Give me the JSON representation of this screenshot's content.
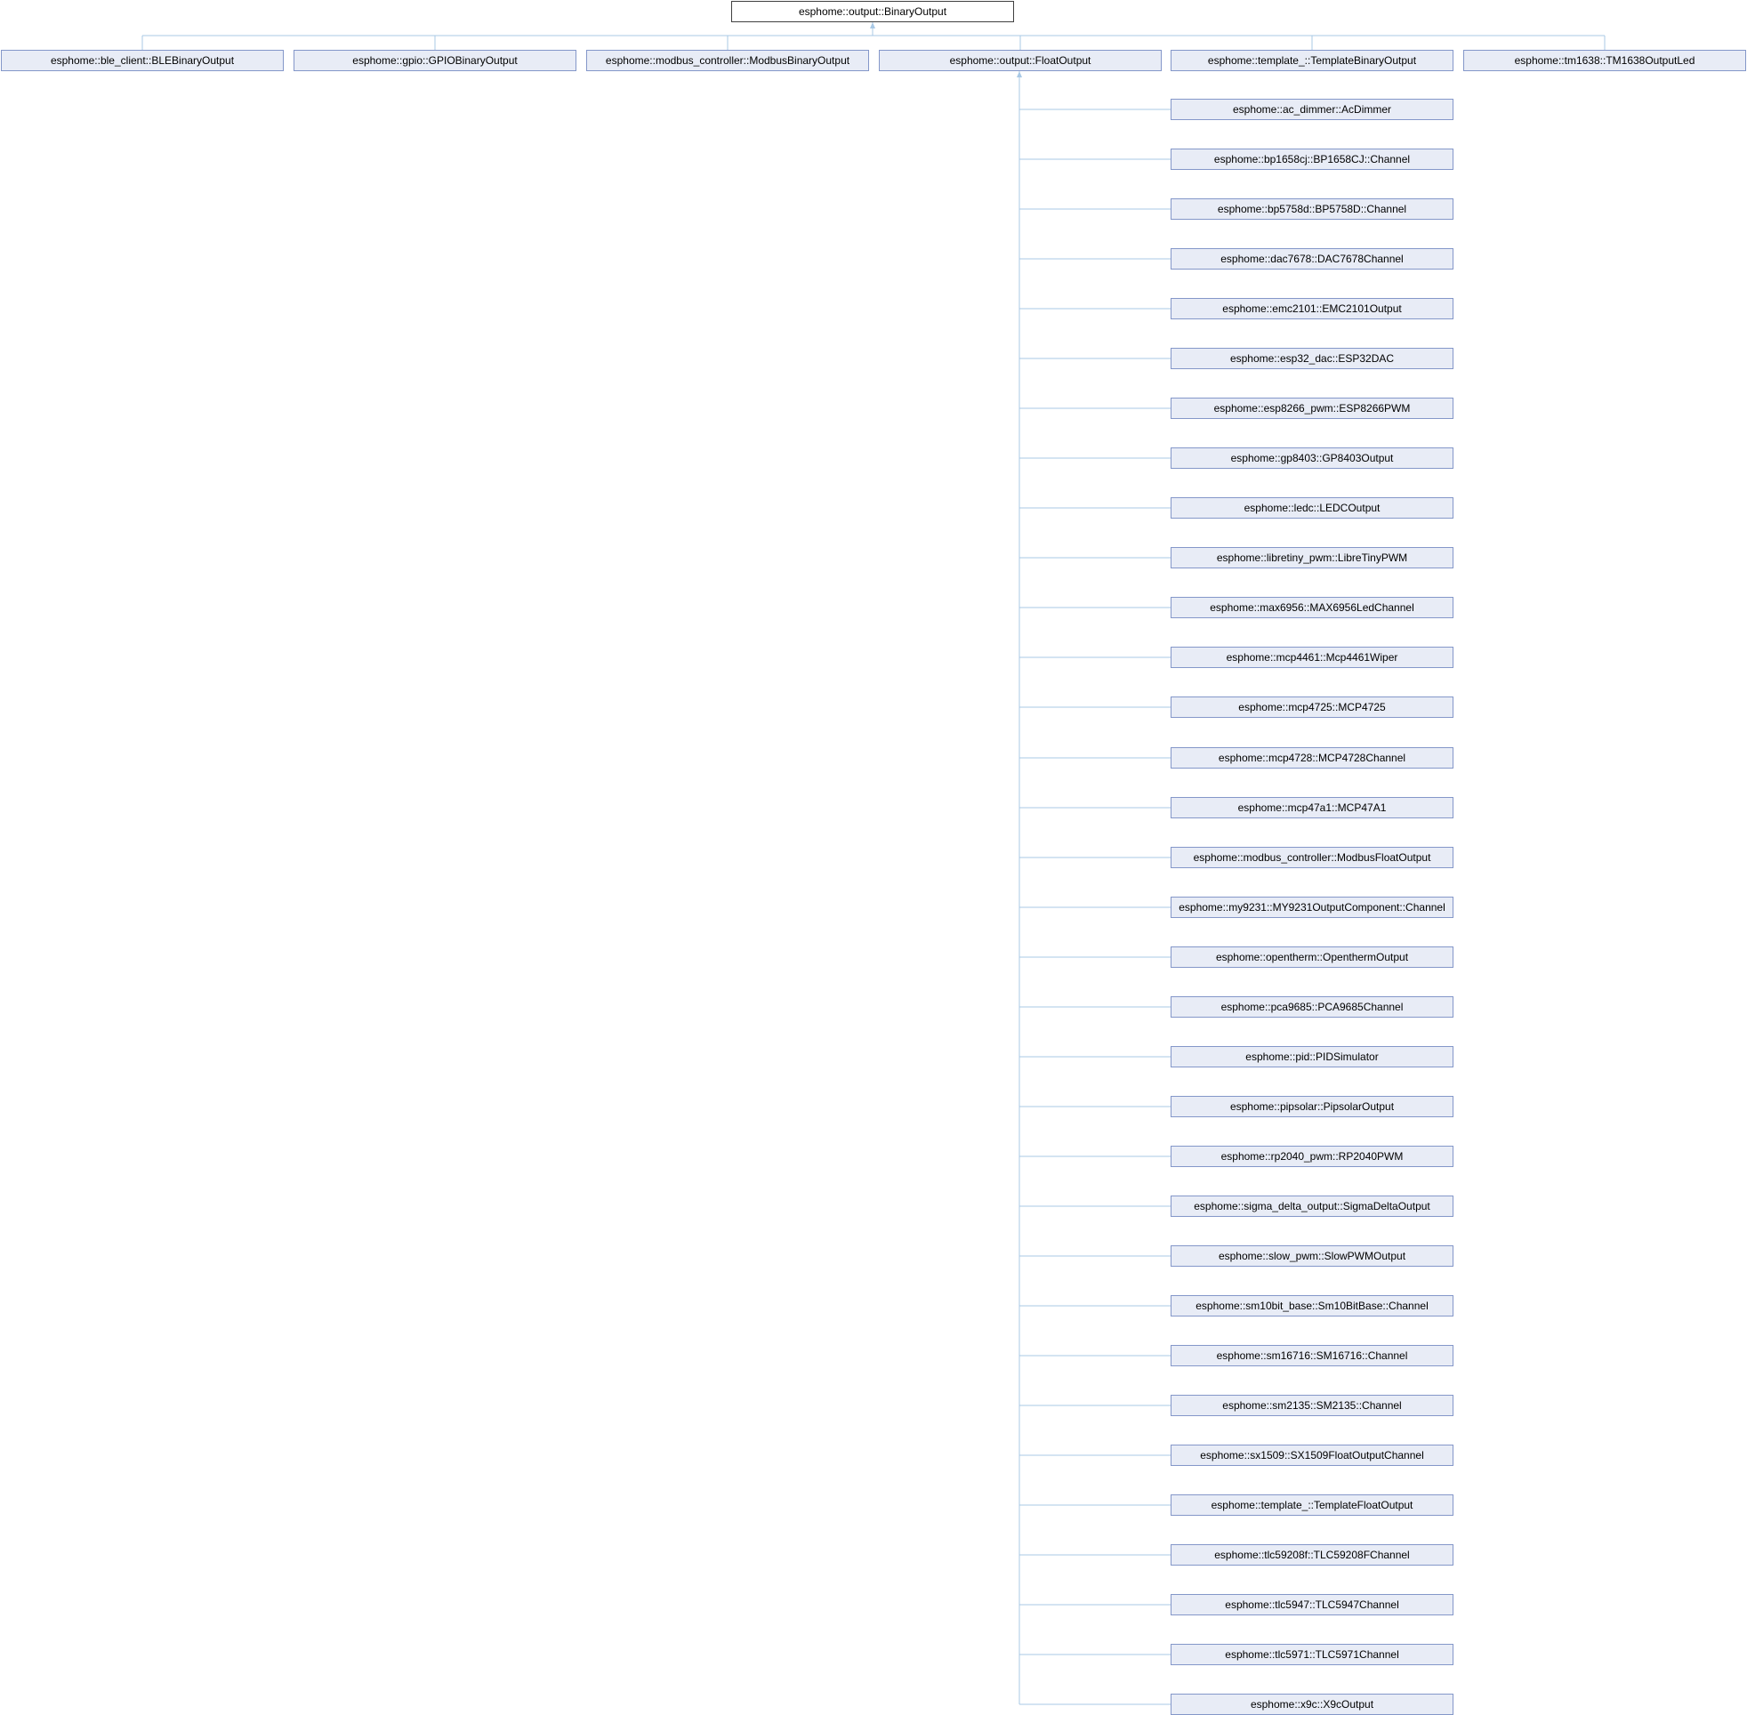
{
  "colors": {
    "edge": "#a9c9e6",
    "node_fill": "#e8ecf6",
    "node_border": "#8497c9",
    "root_fill": "#ffffff",
    "root_border": "#404040"
  },
  "root": "esphome::output::BinaryOutput",
  "level1": [
    "esphome::ble_client::BLEBinaryOutput",
    "esphome::gpio::GPIOBinaryOutput",
    "esphome::modbus_controller::ModbusBinaryOutput",
    "esphome::output::FloatOutput",
    "esphome::template_::TemplateBinaryOutput",
    "esphome::tm1638::TM1638OutputLed"
  ],
  "float_children": [
    "esphome::ac_dimmer::AcDimmer",
    "esphome::bp1658cj::BP1658CJ::Channel",
    "esphome::bp5758d::BP5758D::Channel",
    "esphome::dac7678::DAC7678Channel",
    "esphome::emc2101::EMC2101Output",
    "esphome::esp32_dac::ESP32DAC",
    "esphome::esp8266_pwm::ESP8266PWM",
    "esphome::gp8403::GP8403Output",
    "esphome::ledc::LEDCOutput",
    "esphome::libretiny_pwm::LibreTinyPWM",
    "esphome::max6956::MAX6956LedChannel",
    "esphome::mcp4461::Mcp4461Wiper",
    "esphome::mcp4725::MCP4725",
    "esphome::mcp4728::MCP4728Channel",
    "esphome::mcp47a1::MCP47A1",
    "esphome::modbus_controller::ModbusFloatOutput",
    "esphome::my9231::MY9231OutputComponent::Channel",
    "esphome::opentherm::OpenthermOutput",
    "esphome::pca9685::PCA9685Channel",
    "esphome::pid::PIDSimulator",
    "esphome::pipsolar::PipsolarOutput",
    "esphome::rp2040_pwm::RP2040PWM",
    "esphome::sigma_delta_output::SigmaDeltaOutput",
    "esphome::slow_pwm::SlowPWMOutput",
    "esphome::sm10bit_base::Sm10BitBase::Channel",
    "esphome::sm16716::SM16716::Channel",
    "esphome::sm2135::SM2135::Channel",
    "esphome::sx1509::SX1509FloatOutputChannel",
    "esphome::template_::TemplateFloatOutput",
    "esphome::tlc59208f::TLC59208FChannel",
    "esphome::tlc5947::TLC5947Channel",
    "esphome::tlc5971::TLC5971Channel",
    "esphome::x9c::X9cOutput"
  ]
}
